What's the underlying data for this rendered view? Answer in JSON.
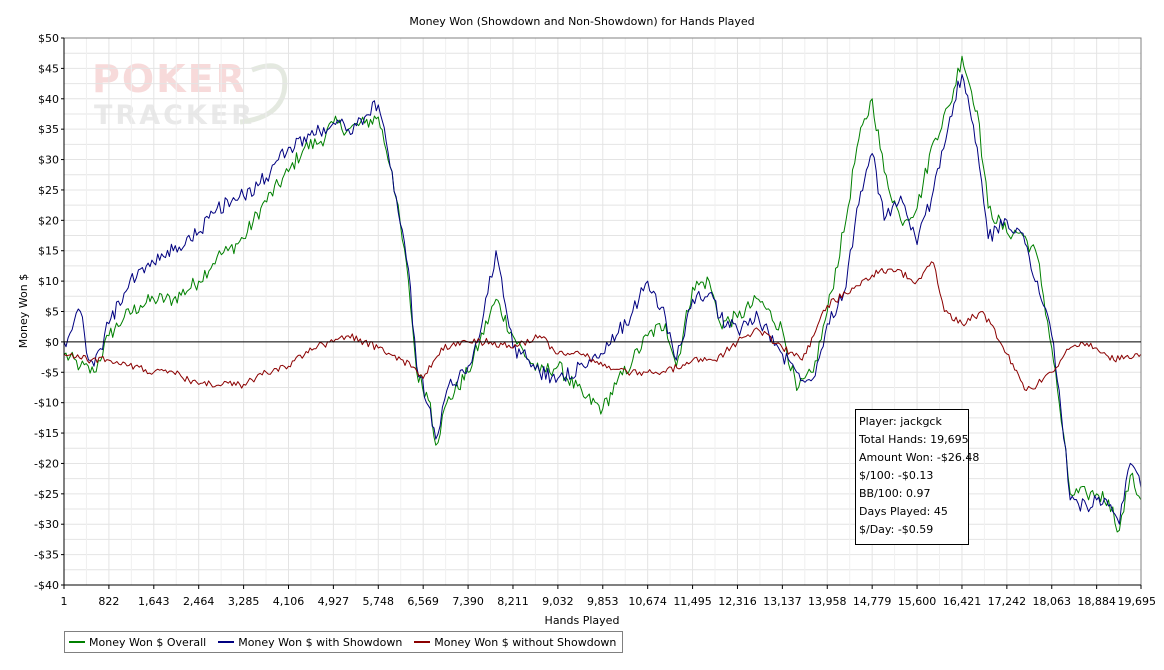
{
  "chart_data": {
    "type": "line",
    "title": "Money Won (Showdown and Non-Showdown) for Hands Played",
    "xlabel": "Hands Played",
    "ylabel": "Money Won $",
    "xlim": [
      1,
      19695
    ],
    "ylim": [
      -40,
      50
    ],
    "y_ticks": [
      50,
      45,
      40,
      35,
      30,
      25,
      20,
      15,
      10,
      5,
      0,
      -5,
      -10,
      -15,
      -20,
      -25,
      -30,
      -35,
      -40
    ],
    "y_tick_labels": [
      "$50",
      "$45",
      "$40",
      "$35",
      "$30",
      "$25",
      "$20",
      "$15",
      "$10",
      "$5",
      "$0",
      "-$5",
      "-$10",
      "-$15",
      "-$20",
      "-$25",
      "-$30",
      "-$35",
      "-$40"
    ],
    "x_ticks": [
      1,
      822,
      1643,
      2464,
      3285,
      4106,
      4927,
      5748,
      6569,
      7390,
      8211,
      9032,
      9853,
      10674,
      11495,
      12316,
      13137,
      13958,
      14779,
      15600,
      16421,
      17242,
      18063,
      18884,
      19695
    ],
    "x_tick_labels": [
      "1",
      "822",
      "1,643",
      "2,464",
      "3,285",
      "4,106",
      "4,927",
      "5,748",
      "6,569",
      "7,390",
      "8,211",
      "9,032",
      "9,853",
      "10,674",
      "11,495",
      "12,316",
      "13,137",
      "13,958",
      "14,779",
      "15,600",
      "16,421",
      "17,242",
      "18,063",
      "18,884",
      "19,695"
    ],
    "grid": true,
    "legend_position": "bottom-left",
    "series": [
      {
        "name": "Money Won $ Overall",
        "color": "#008000",
        "points": [
          [
            1,
            -2
          ],
          [
            300,
            -4
          ],
          [
            550,
            -5
          ],
          [
            822,
            1
          ],
          [
            1100,
            4
          ],
          [
            1400,
            6
          ],
          [
            1643,
            7
          ],
          [
            2000,
            7
          ],
          [
            2464,
            10
          ],
          [
            2800,
            14
          ],
          [
            3000,
            15
          ],
          [
            3285,
            17
          ],
          [
            3600,
            22
          ],
          [
            4106,
            28
          ],
          [
            4400,
            32
          ],
          [
            4700,
            33
          ],
          [
            4927,
            36
          ],
          [
            5200,
            35
          ],
          [
            5500,
            36
          ],
          [
            5748,
            37
          ],
          [
            6000,
            28
          ],
          [
            6300,
            10
          ],
          [
            6450,
            -5
          ],
          [
            6700,
            -10
          ],
          [
            6800,
            -17
          ],
          [
            7000,
            -10
          ],
          [
            7390,
            -5
          ],
          [
            7600,
            0
          ],
          [
            7900,
            7
          ],
          [
            8211,
            1
          ],
          [
            8500,
            -3
          ],
          [
            8700,
            -5
          ],
          [
            9032,
            -4
          ],
          [
            9500,
            -9
          ],
          [
            9853,
            -11
          ],
          [
            10100,
            -7
          ],
          [
            10400,
            -3
          ],
          [
            10674,
            1
          ],
          [
            11000,
            3
          ],
          [
            11200,
            -4
          ],
          [
            11495,
            9
          ],
          [
            11800,
            10
          ],
          [
            12000,
            3
          ],
          [
            12316,
            4
          ],
          [
            12700,
            7
          ],
          [
            13137,
            2
          ],
          [
            13400,
            -8
          ],
          [
            13700,
            -5
          ],
          [
            13958,
            5
          ],
          [
            14300,
            20
          ],
          [
            14500,
            32
          ],
          [
            14779,
            40
          ],
          [
            15000,
            28
          ],
          [
            15300,
            20
          ],
          [
            15600,
            22
          ],
          [
            15900,
            33
          ],
          [
            16200,
            39
          ],
          [
            16421,
            47
          ],
          [
            16700,
            38
          ],
          [
            16900,
            22
          ],
          [
            17242,
            18
          ],
          [
            17500,
            18
          ],
          [
            17800,
            14
          ],
          [
            18063,
            -1
          ],
          [
            18200,
            -10
          ],
          [
            18400,
            -25
          ],
          [
            18700,
            -25
          ],
          [
            18884,
            -25
          ],
          [
            19100,
            -26
          ],
          [
            19300,
            -31
          ],
          [
            19500,
            -22
          ],
          [
            19695,
            -26
          ]
        ]
      },
      {
        "name": "Money Won $ with Showdown",
        "color": "#000080",
        "points": [
          [
            1,
            0
          ],
          [
            150,
            2
          ],
          [
            300,
            5
          ],
          [
            450,
            -3
          ],
          [
            550,
            -4
          ],
          [
            822,
            3
          ],
          [
            1100,
            8
          ],
          [
            1400,
            12
          ],
          [
            1643,
            13
          ],
          [
            2000,
            15
          ],
          [
            2464,
            18
          ],
          [
            2800,
            22
          ],
          [
            3285,
            24
          ],
          [
            3700,
            27
          ],
          [
            4106,
            32
          ],
          [
            4500,
            34
          ],
          [
            4927,
            36
          ],
          [
            5200,
            35
          ],
          [
            5500,
            37
          ],
          [
            5748,
            39
          ],
          [
            6000,
            28
          ],
          [
            6300,
            12
          ],
          [
            6450,
            -4
          ],
          [
            6700,
            -11
          ],
          [
            6800,
            -16
          ],
          [
            7000,
            -8
          ],
          [
            7390,
            -4
          ],
          [
            7600,
            1
          ],
          [
            7900,
            15
          ],
          [
            8211,
            -1
          ],
          [
            8500,
            -3
          ],
          [
            8700,
            -5
          ],
          [
            9032,
            -6
          ],
          [
            9500,
            -4
          ],
          [
            9853,
            -2
          ],
          [
            10100,
            1
          ],
          [
            10400,
            5
          ],
          [
            10674,
            10
          ],
          [
            11000,
            4
          ],
          [
            11200,
            -3
          ],
          [
            11495,
            7
          ],
          [
            11800,
            8
          ],
          [
            12000,
            4
          ],
          [
            12316,
            2
          ],
          [
            12700,
            4
          ],
          [
            13137,
            -2
          ],
          [
            13400,
            -5
          ],
          [
            13700,
            -6
          ],
          [
            13958,
            3
          ],
          [
            14300,
            9
          ],
          [
            14500,
            22
          ],
          [
            14779,
            31
          ],
          [
            15000,
            20
          ],
          [
            15300,
            24
          ],
          [
            15600,
            16
          ],
          [
            15900,
            25
          ],
          [
            16200,
            37
          ],
          [
            16421,
            44
          ],
          [
            16700,
            32
          ],
          [
            16900,
            17
          ],
          [
            17242,
            20
          ],
          [
            17500,
            18
          ],
          [
            17800,
            10
          ],
          [
            18063,
            1
          ],
          [
            18200,
            -8
          ],
          [
            18400,
            -26
          ],
          [
            18700,
            -27
          ],
          [
            18884,
            -26
          ],
          [
            19100,
            -27
          ],
          [
            19300,
            -30
          ],
          [
            19500,
            -20
          ],
          [
            19695,
            -24
          ]
        ]
      },
      {
        "name": "Money Won $ without Showdown",
        "color": "#8B0000",
        "points": [
          [
            1,
            -2
          ],
          [
            500,
            -3
          ],
          [
            822,
            -3
          ],
          [
            1300,
            -4
          ],
          [
            1643,
            -5
          ],
          [
            2000,
            -5
          ],
          [
            2464,
            -7
          ],
          [
            2900,
            -7
          ],
          [
            3285,
            -7
          ],
          [
            3700,
            -5
          ],
          [
            4106,
            -4
          ],
          [
            4500,
            -1
          ],
          [
            4927,
            0
          ],
          [
            5200,
            1
          ],
          [
            5748,
            -1
          ],
          [
            6200,
            -3
          ],
          [
            6569,
            -6
          ],
          [
            6900,
            -1
          ],
          [
            7390,
            0
          ],
          [
            7800,
            0
          ],
          [
            8211,
            -1
          ],
          [
            8700,
            1
          ],
          [
            9032,
            -2
          ],
          [
            9500,
            -2
          ],
          [
            9853,
            -4
          ],
          [
            10300,
            -5
          ],
          [
            10674,
            -5
          ],
          [
            11000,
            -5
          ],
          [
            11495,
            -3
          ],
          [
            11900,
            -3
          ],
          [
            12316,
            0
          ],
          [
            12700,
            2
          ],
          [
            13137,
            -1
          ],
          [
            13500,
            -3
          ],
          [
            13958,
            6
          ],
          [
            14300,
            8
          ],
          [
            14779,
            11
          ],
          [
            15100,
            12
          ],
          [
            15600,
            10
          ],
          [
            15900,
            13
          ],
          [
            16100,
            5
          ],
          [
            16421,
            3
          ],
          [
            16800,
            5
          ],
          [
            17242,
            -2
          ],
          [
            17600,
            -8
          ],
          [
            17800,
            -7
          ],
          [
            18063,
            -5
          ],
          [
            18300,
            -2
          ],
          [
            18600,
            0
          ],
          [
            18884,
            -1
          ],
          [
            19200,
            -3
          ],
          [
            19695,
            -2
          ]
        ]
      }
    ]
  },
  "watermark": "POKERTRACKER 3",
  "stats_box": {
    "player": "Player: jackgck",
    "total_hands": "Total Hands: 19,695",
    "amount_won": "Amount Won: -$26.48",
    "per_100": "$/100: -$0.13",
    "bb_per_100": "BB/100: 0.97",
    "days_played": "Days Played: 45",
    "per_day": "$/Day: -$0.59"
  },
  "colors": {
    "overall": "#008000",
    "showdown": "#000080",
    "non_showdown": "#8B0000",
    "grid": "#e4e4e4",
    "watermark": "#f0c8c8"
  }
}
